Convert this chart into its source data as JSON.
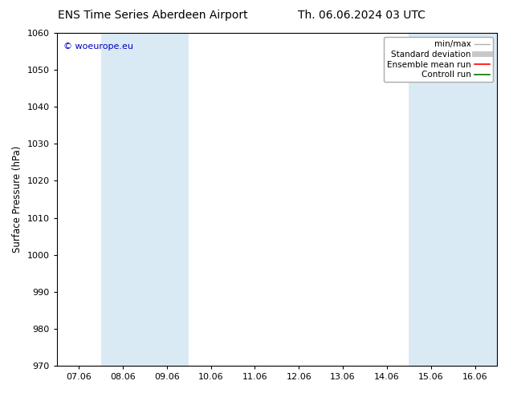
{
  "title_left": "ENS Time Series Aberdeen Airport",
  "title_right": "Th. 06.06.2024 03 UTC",
  "ylabel": "Surface Pressure (hPa)",
  "ylim": [
    970,
    1060
  ],
  "yticks": [
    970,
    980,
    990,
    1000,
    1010,
    1020,
    1030,
    1040,
    1050,
    1060
  ],
  "xtick_labels": [
    "07.06",
    "08.06",
    "09.06",
    "10.06",
    "11.06",
    "12.06",
    "13.06",
    "14.06",
    "15.06",
    "16.06"
  ],
  "xtick_positions": [
    0,
    1,
    2,
    3,
    4,
    5,
    6,
    7,
    8,
    9
  ],
  "xlim": [
    -0.5,
    9.5
  ],
  "shaded_bands": [
    {
      "x_start": 0.5,
      "x_end": 2.5,
      "color": "#daeaf5"
    },
    {
      "x_start": 7.5,
      "x_end": 9.5,
      "color": "#daeaf5"
    }
  ],
  "watermark_text": "© woeurope.eu",
  "watermark_color": "#0000bb",
  "background_color": "#ffffff",
  "plot_bg_color": "#ffffff",
  "legend_items": [
    {
      "label": "min/max",
      "color": "#b0b0b0",
      "lw": 1.0
    },
    {
      "label": "Standard deviation",
      "color": "#c8c8c8",
      "lw": 5.0
    },
    {
      "label": "Ensemble mean run",
      "color": "#ff0000",
      "lw": 1.2
    },
    {
      "label": "Controll run",
      "color": "#007700",
      "lw": 1.2
    }
  ],
  "title_fontsize": 10,
  "ylabel_fontsize": 8.5,
  "tick_fontsize": 8,
  "legend_fontsize": 7.5,
  "watermark_fontsize": 8
}
